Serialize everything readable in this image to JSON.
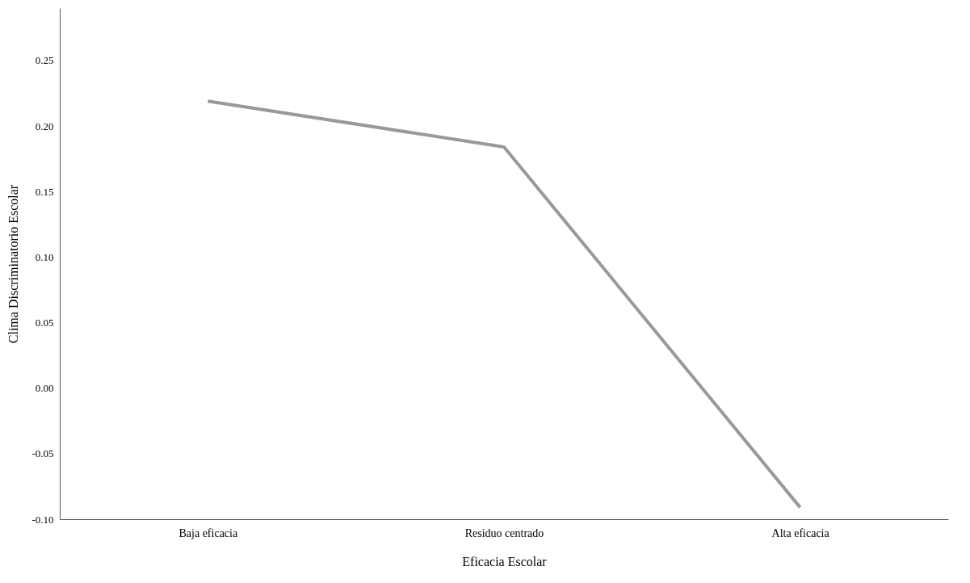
{
  "chart_data": {
    "type": "line",
    "xlabel": "Eficacia Escolar",
    "ylabel": "Clima Discriminatorio Escolar",
    "categories": [
      "Baja eficacia",
      "Residuo centrado",
      "Alta eficacia"
    ],
    "series": [
      {
        "color": "#999999",
        "values": [
          0.219,
          0.184,
          -0.091
        ]
      }
    ],
    "ylim": [
      -0.1,
      0.29
    ],
    "yticks": [
      {
        "value": -0.1,
        "label": "-0.10"
      },
      {
        "value": -0.05,
        "label": "-0.05"
      },
      {
        "value": 0,
        "label": "0.00"
      },
      {
        "value": 0.05,
        "label": "0.05"
      },
      {
        "value": 0.1,
        "label": "0.10"
      },
      {
        "value": 0.15,
        "label": "0.15"
      },
      {
        "value": 0.2,
        "label": "0.20"
      },
      {
        "value": 0.25,
        "label": "0.25"
      }
    ],
    "grid": false,
    "legend": false,
    "marker": "none",
    "line_style": "solid"
  }
}
